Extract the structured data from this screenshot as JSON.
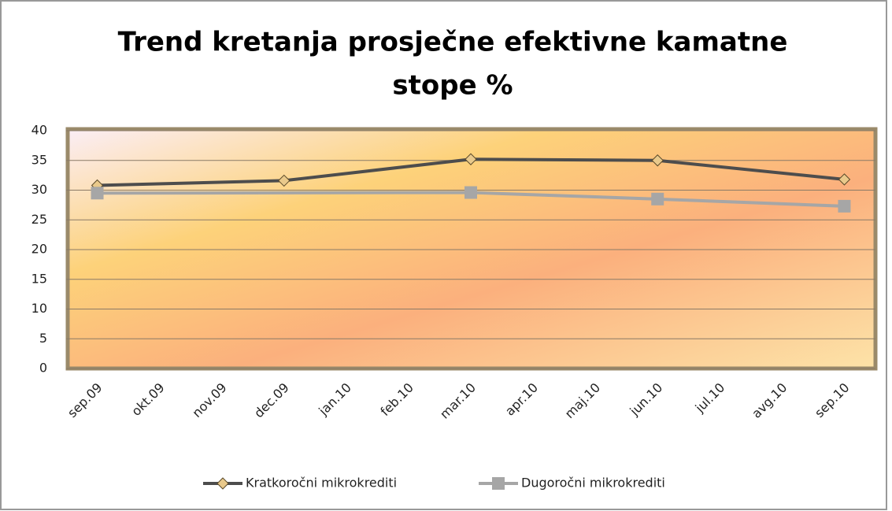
{
  "chart_data": {
    "type": "line",
    "title": [
      "Trend kretanja prosječne efektivne kamatne",
      "stope %"
    ],
    "categories": [
      "sep.09",
      "okt.09",
      "nov.09",
      "dec.09",
      "jan.10",
      "feb.10",
      "mar.10",
      "apr.10",
      "maj.10",
      "jun.10",
      "jul.10",
      "avg.10",
      "sep.10"
    ],
    "series": [
      {
        "name": "Kratkoročni mikrokrediti",
        "color": "#4d4d4d",
        "marker": "diamond",
        "marker_color": "#e9c98b",
        "values": [
          30.8,
          null,
          null,
          31.6,
          null,
          null,
          35.2,
          null,
          null,
          35,
          null,
          null,
          31.8
        ]
      },
      {
        "name": "Dugoročni mikrokrediti",
        "color": "#a6a6a6",
        "marker": "square",
        "marker_color": "#a6a6a6",
        "values": [
          29.5,
          null,
          null,
          null,
          null,
          null,
          29.6,
          null,
          null,
          28.5,
          null,
          null,
          27.3
        ]
      }
    ],
    "ylim": [
      0,
      40
    ],
    "yticks": [
      0,
      5,
      10,
      15,
      20,
      25,
      30,
      35,
      40
    ],
    "grid": true,
    "span_gaps": true,
    "legend": "bottom"
  }
}
